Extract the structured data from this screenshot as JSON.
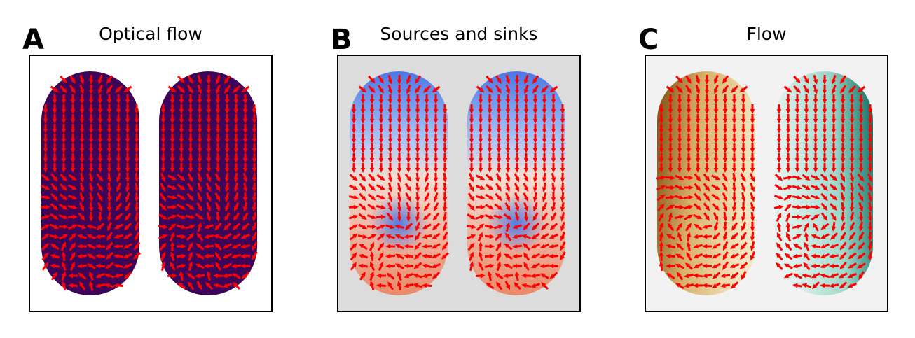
{
  "panels": [
    {
      "letter": "A",
      "title": "Optical flow"
    },
    {
      "letter": "B",
      "title": "Sources and sinks"
    },
    {
      "letter": "C",
      "title": "Flow"
    }
  ],
  "colors": {
    "arrow": "#ff0000",
    "optical_fill": "#3c0558",
    "panel_bg_optical": "#ffffff",
    "panel_bg_sources": "#dcdcdc",
    "panel_bg_flow": "#f2f2f2",
    "sink_blue": "#4a78e6",
    "source_red": "#e98a6a",
    "flow_left_dark": "#7a4a10",
    "flow_left_light": "#f2e6c2",
    "flow_right_light": "#e4f3ef",
    "flow_right_dark": "#0b6a5e"
  }
}
